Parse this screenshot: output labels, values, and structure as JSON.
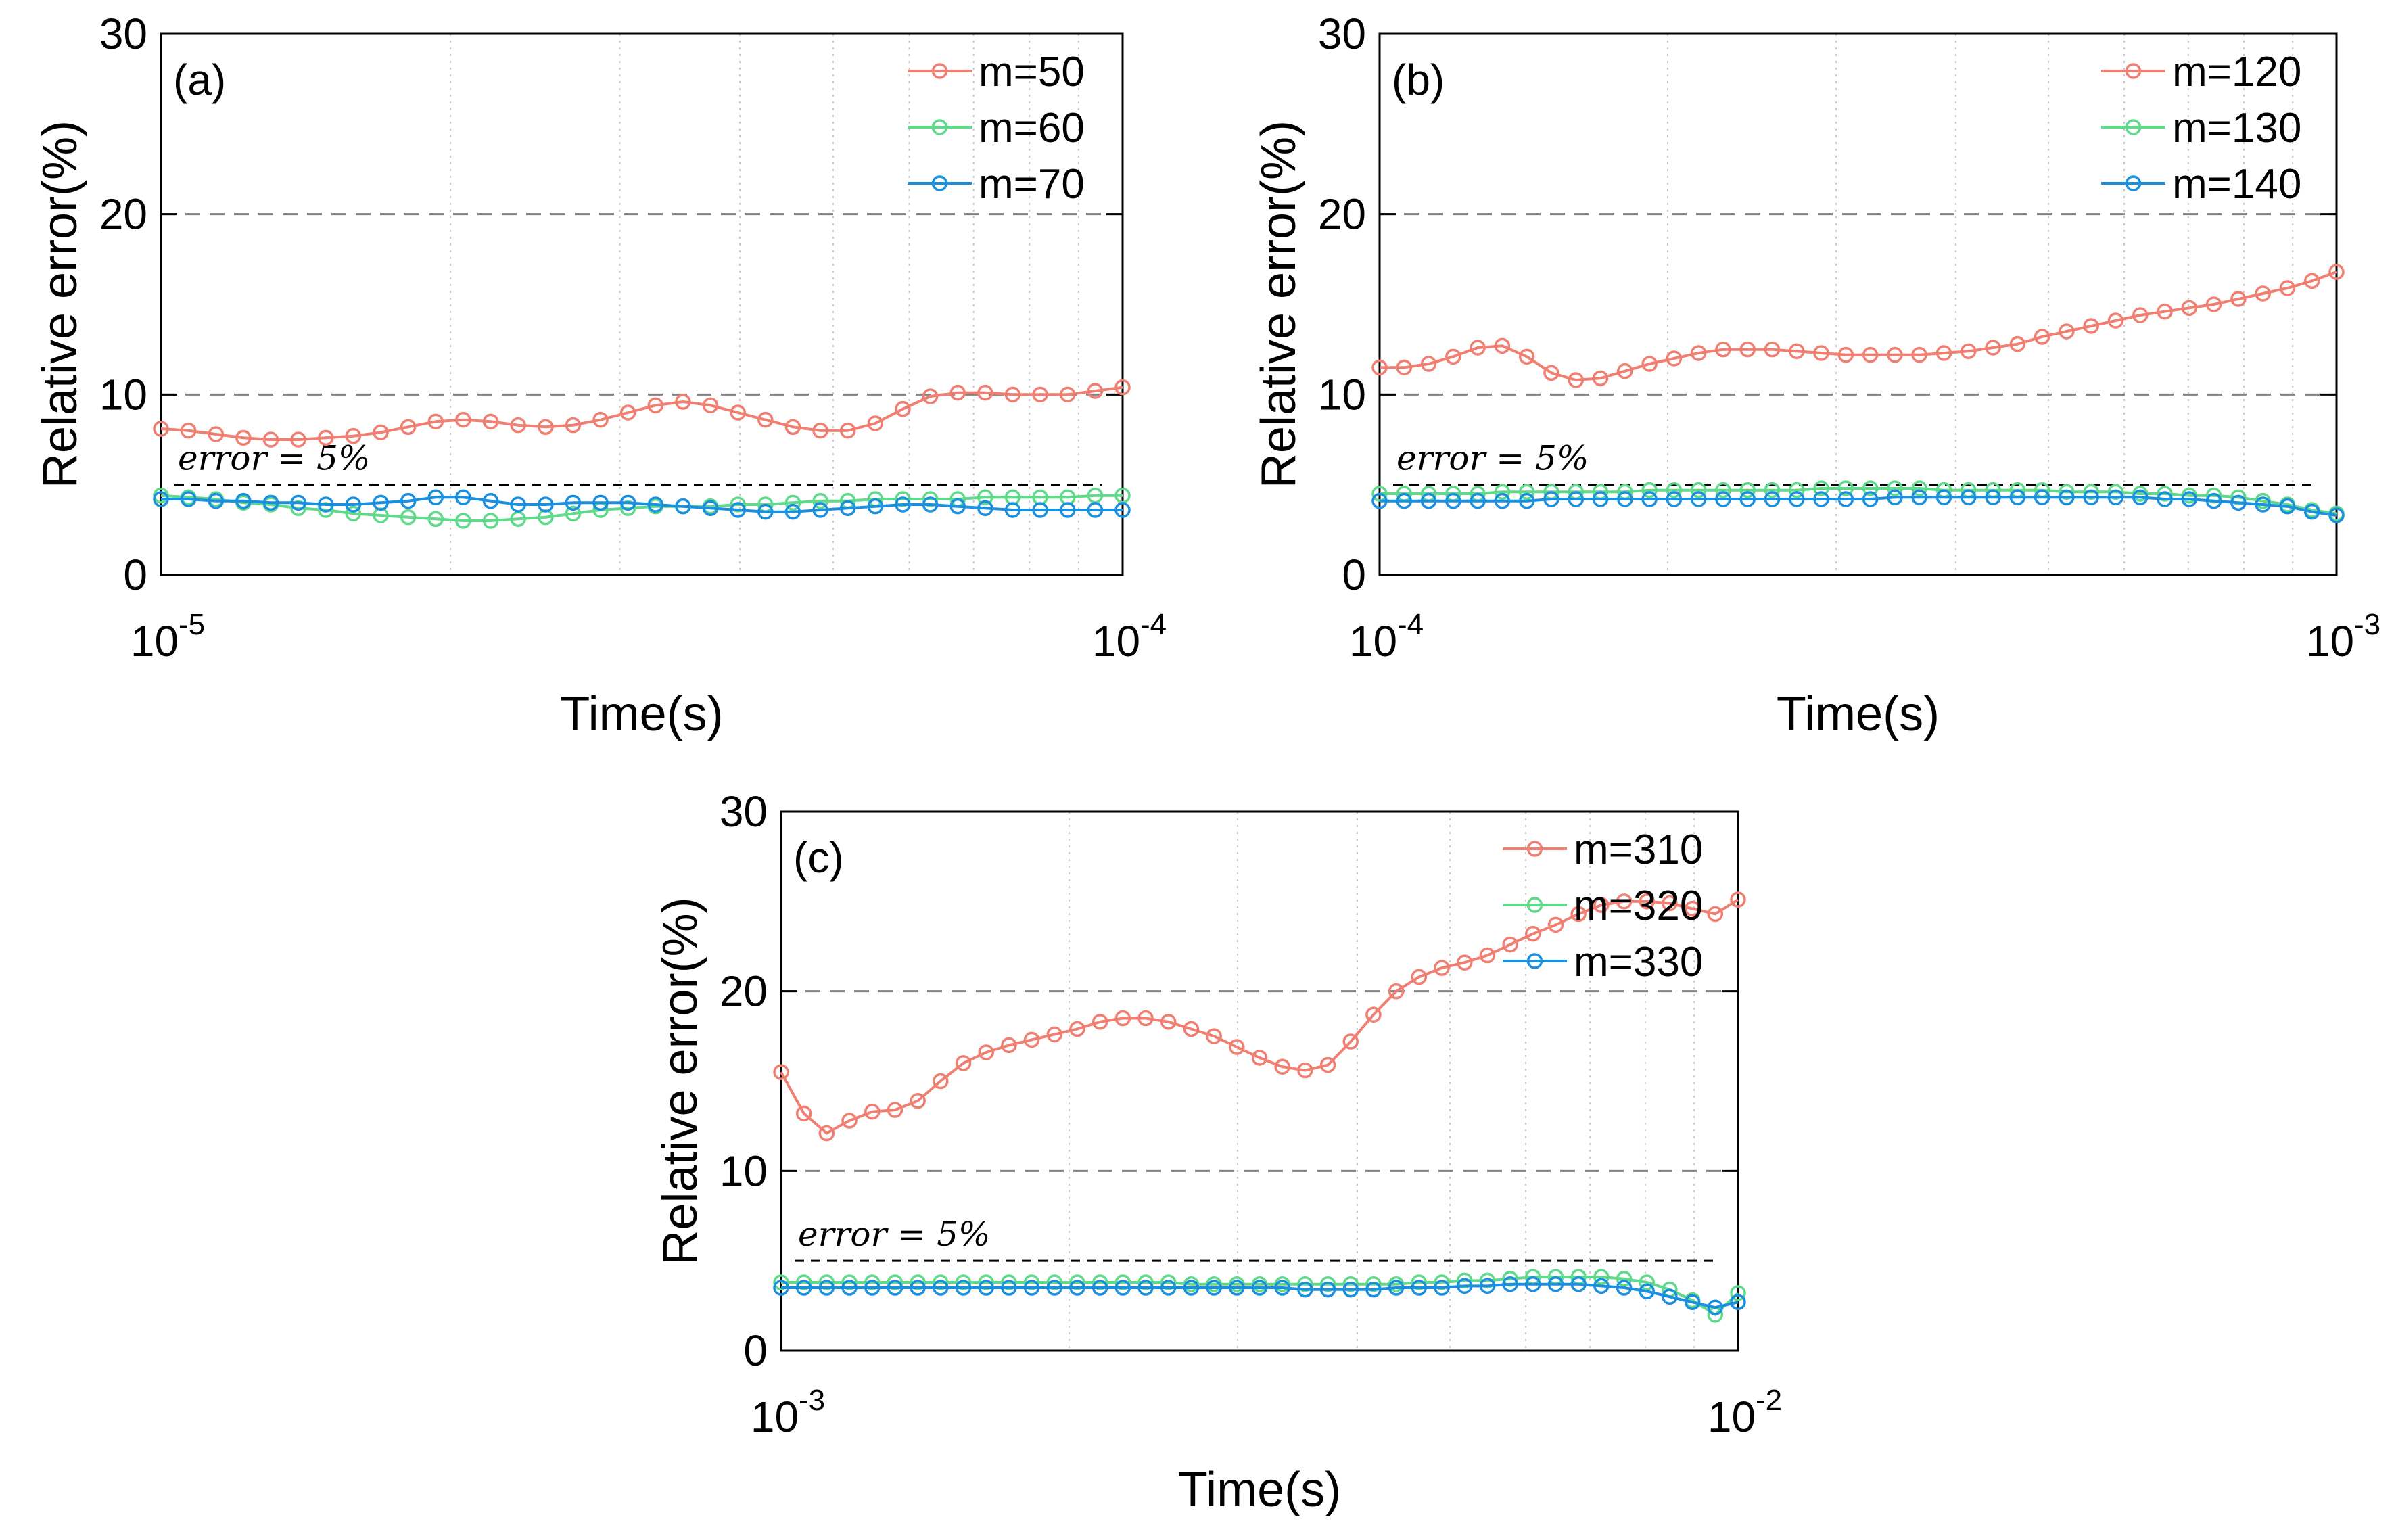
{
  "chart_data": [
    {
      "type": "line",
      "panel_label": "(a)",
      "xlabel": "Time(s)",
      "ylabel": "Relative error(%)",
      "xscale": "log",
      "xlim": [
        1e-05,
        0.0001
      ],
      "ylim": [
        0,
        30
      ],
      "ytick_labels": [
        "0",
        "10",
        "20",
        "30"
      ],
      "xtick_labels": [
        {
          "base": "10",
          "exp": "-5"
        },
        {
          "base": "10",
          "exp": "-4"
        }
      ],
      "grid": "dashed y at 10 and 20; dotted x at log minor ticks",
      "threshold": {
        "value": 5,
        "label": "error = 5%"
      },
      "legend": "top-right",
      "series": [
        {
          "name": "m=50",
          "color": "#f07f72",
          "values": [
            8.1,
            8.0,
            7.8,
            7.6,
            7.5,
            7.5,
            7.6,
            7.7,
            7.9,
            8.2,
            8.5,
            8.6,
            8.5,
            8.3,
            8.2,
            8.3,
            8.6,
            9.0,
            9.4,
            9.6,
            9.4,
            9.0,
            8.6,
            8.2,
            8.0,
            8.0,
            8.4,
            9.2,
            9.9,
            10.1,
            10.1,
            10.0,
            10.0,
            10.0,
            10.2,
            10.4
          ]
        },
        {
          "name": "m=60",
          "color": "#5fd98a",
          "values": [
            4.4,
            4.3,
            4.2,
            4.0,
            3.9,
            3.7,
            3.6,
            3.4,
            3.3,
            3.2,
            3.1,
            3.0,
            3.0,
            3.1,
            3.2,
            3.4,
            3.6,
            3.7,
            3.8,
            3.8,
            3.8,
            3.9,
            3.9,
            4.0,
            4.1,
            4.1,
            4.2,
            4.2,
            4.2,
            4.2,
            4.3,
            4.3,
            4.3,
            4.3,
            4.4,
            4.4
          ]
        },
        {
          "name": "m=70",
          "color": "#1a8fe0",
          "values": [
            4.2,
            4.2,
            4.1,
            4.1,
            4.0,
            4.0,
            3.9,
            3.9,
            4.0,
            4.1,
            4.3,
            4.3,
            4.1,
            3.9,
            3.9,
            4.0,
            4.0,
            4.0,
            3.9,
            3.8,
            3.7,
            3.6,
            3.5,
            3.5,
            3.6,
            3.7,
            3.8,
            3.9,
            3.9,
            3.8,
            3.7,
            3.6,
            3.6,
            3.6,
            3.6,
            3.6
          ]
        }
      ]
    },
    {
      "type": "line",
      "panel_label": "(b)",
      "xlabel": "Time(s)",
      "ylabel": "Relative error(%)",
      "xscale": "log",
      "xlim": [
        0.0001,
        0.001
      ],
      "ylim": [
        0,
        30
      ],
      "ytick_labels": [
        "0",
        "10",
        "20",
        "30"
      ],
      "xtick_labels": [
        {
          "base": "10",
          "exp": "-4"
        },
        {
          "base": "10",
          "exp": "-3"
        }
      ],
      "grid": "dashed y at 10 and 20; dotted x at log minor ticks",
      "threshold": {
        "value": 5,
        "label": "error = 5%"
      },
      "legend": "top-right",
      "series": [
        {
          "name": "m=120",
          "color": "#f07f72",
          "values": [
            11.5,
            11.5,
            11.7,
            12.1,
            12.6,
            12.7,
            12.1,
            11.2,
            10.8,
            10.9,
            11.3,
            11.7,
            12.0,
            12.3,
            12.5,
            12.5,
            12.5,
            12.4,
            12.3,
            12.2,
            12.2,
            12.2,
            12.2,
            12.3,
            12.4,
            12.6,
            12.8,
            13.2,
            13.5,
            13.8,
            14.1,
            14.4,
            14.6,
            14.8,
            15.0,
            15.3,
            15.6,
            15.9,
            16.3,
            16.8
          ]
        },
        {
          "name": "m=130",
          "color": "#5fd98a",
          "values": [
            4.5,
            4.5,
            4.5,
            4.5,
            4.5,
            4.6,
            4.6,
            4.6,
            4.6,
            4.6,
            4.6,
            4.7,
            4.7,
            4.7,
            4.7,
            4.7,
            4.7,
            4.7,
            4.8,
            4.8,
            4.8,
            4.8,
            4.8,
            4.7,
            4.7,
            4.7,
            4.7,
            4.7,
            4.6,
            4.6,
            4.6,
            4.5,
            4.5,
            4.4,
            4.4,
            4.3,
            4.1,
            3.9,
            3.6,
            3.4
          ]
        },
        {
          "name": "m=140",
          "color": "#1a8fe0",
          "values": [
            4.1,
            4.1,
            4.1,
            4.1,
            4.1,
            4.1,
            4.1,
            4.2,
            4.2,
            4.2,
            4.2,
            4.2,
            4.2,
            4.2,
            4.2,
            4.2,
            4.2,
            4.2,
            4.2,
            4.2,
            4.2,
            4.3,
            4.3,
            4.3,
            4.3,
            4.3,
            4.3,
            4.3,
            4.3,
            4.3,
            4.3,
            4.3,
            4.2,
            4.2,
            4.1,
            4.0,
            3.9,
            3.8,
            3.5,
            3.3
          ]
        }
      ]
    },
    {
      "type": "line",
      "panel_label": "(c)",
      "xlabel": "Time(s)",
      "ylabel": "Relative error(%)",
      "xscale": "log",
      "xlim": [
        0.001,
        0.01
      ],
      "ylim": [
        0,
        30
      ],
      "ytick_labels": [
        "0",
        "10",
        "20",
        "30"
      ],
      "xtick_labels": [
        {
          "base": "10",
          "exp": "-3"
        },
        {
          "base": "10",
          "exp": "-2"
        }
      ],
      "grid": "dashed y at 10 and 20; dotted x at log minor ticks",
      "threshold": {
        "value": 5,
        "label": "error = 5%"
      },
      "legend": "top-right",
      "series": [
        {
          "name": "m=310",
          "color": "#f07f72",
          "values": [
            15.5,
            13.2,
            12.1,
            12.8,
            13.3,
            13.4,
            13.9,
            15.0,
            16.0,
            16.6,
            17.0,
            17.3,
            17.6,
            17.9,
            18.3,
            18.5,
            18.5,
            18.3,
            17.9,
            17.5,
            16.9,
            16.3,
            15.8,
            15.6,
            15.9,
            17.2,
            18.7,
            20.0,
            20.8,
            21.3,
            21.6,
            22.0,
            22.6,
            23.2,
            23.7,
            24.3,
            24.8,
            25.0,
            25.0,
            24.9,
            24.6,
            24.3,
            25.1
          ]
        },
        {
          "name": "m=320",
          "color": "#5fd98a",
          "values": [
            3.8,
            3.8,
            3.8,
            3.8,
            3.8,
            3.8,
            3.8,
            3.8,
            3.8,
            3.8,
            3.8,
            3.8,
            3.8,
            3.8,
            3.8,
            3.8,
            3.8,
            3.8,
            3.7,
            3.7,
            3.7,
            3.7,
            3.7,
            3.7,
            3.7,
            3.7,
            3.7,
            3.7,
            3.8,
            3.8,
            3.9,
            3.9,
            4.0,
            4.1,
            4.1,
            4.1,
            4.1,
            4.0,
            3.8,
            3.4,
            2.8,
            2.0,
            3.2
          ]
        },
        {
          "name": "m=330",
          "color": "#1a8fe0",
          "values": [
            3.5,
            3.5,
            3.5,
            3.5,
            3.5,
            3.5,
            3.5,
            3.5,
            3.5,
            3.5,
            3.5,
            3.5,
            3.5,
            3.5,
            3.5,
            3.5,
            3.5,
            3.5,
            3.5,
            3.5,
            3.5,
            3.5,
            3.5,
            3.4,
            3.4,
            3.4,
            3.4,
            3.5,
            3.5,
            3.5,
            3.6,
            3.6,
            3.7,
            3.7,
            3.7,
            3.7,
            3.6,
            3.5,
            3.3,
            3.0,
            2.7,
            2.4,
            2.7
          ]
        }
      ]
    }
  ]
}
